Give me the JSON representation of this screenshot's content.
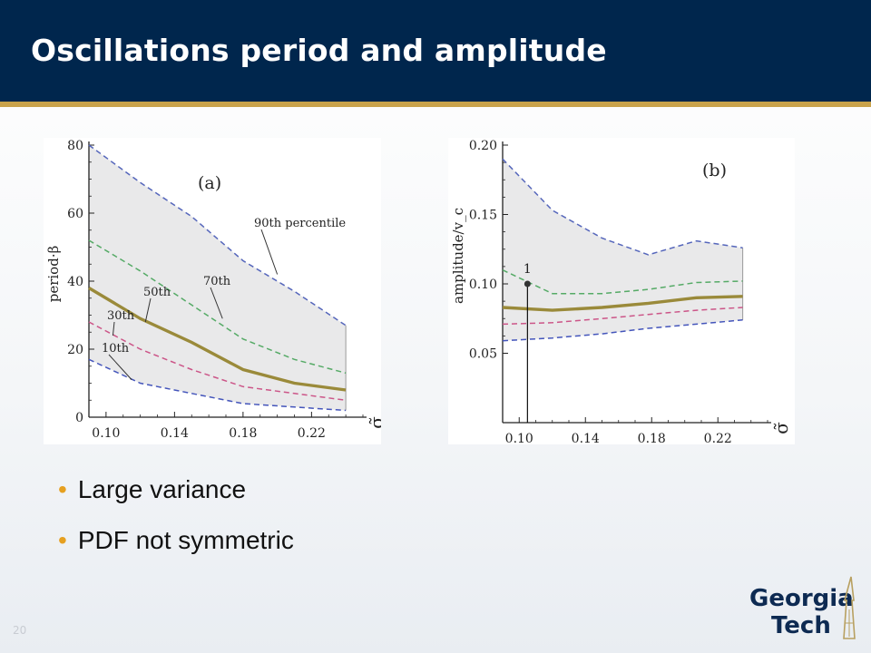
{
  "slide": {
    "title": "Oscillations period and amplitude",
    "slide_number": "20"
  },
  "bullets": [
    "Large variance",
    "PDF not symmetric"
  ],
  "logo": {
    "line1": "Georgia",
    "line2": "Tech"
  },
  "colors": {
    "header": "#00264d",
    "accent": "#c9a24b",
    "bullet": "#e6a020",
    "p90": "#5566bb",
    "p70": "#55aa66",
    "p50": "#9a8a3a",
    "p30": "#cc5588",
    "p10": "#4455bb"
  },
  "chart_data": [
    {
      "type": "line",
      "panel_label": "(a)",
      "xlabel": "σ̃",
      "ylabel": "period·β",
      "xlim": [
        0.09,
        0.25
      ],
      "ylim": [
        0,
        80
      ],
      "xticks": [
        0.1,
        0.14,
        0.18,
        0.22
      ],
      "xtick_labels": [
        "0.10",
        "0.14",
        "0.18",
        "0.22"
      ],
      "yticks": [
        0,
        20,
        40,
        60,
        80
      ],
      "ytick_labels": [
        "0",
        "20",
        "40",
        "60",
        "80"
      ],
      "shaded_band": {
        "lower_series": "10th",
        "upper_series": "90th"
      },
      "series": [
        {
          "name": "90th percentile",
          "label_text": "90th percentile",
          "style": "dashed",
          "color_key": "p90",
          "x": [
            0.09,
            0.12,
            0.15,
            0.18,
            0.21,
            0.24
          ],
          "y": [
            80,
            69,
            59,
            46,
            37,
            27
          ]
        },
        {
          "name": "70th",
          "label_text": "70th",
          "style": "dashed",
          "color_key": "p70",
          "x": [
            0.09,
            0.12,
            0.15,
            0.18,
            0.21,
            0.24
          ],
          "y": [
            52,
            43,
            33,
            23,
            17,
            13
          ]
        },
        {
          "name": "50th",
          "label_text": "50th",
          "style": "solid",
          "color_key": "p50",
          "x": [
            0.09,
            0.12,
            0.15,
            0.18,
            0.21,
            0.24
          ],
          "y": [
            38,
            29,
            22,
            14,
            10,
            8
          ]
        },
        {
          "name": "30th",
          "label_text": "30th",
          "style": "dashed",
          "color_key": "p30",
          "x": [
            0.09,
            0.12,
            0.15,
            0.18,
            0.21,
            0.24
          ],
          "y": [
            28,
            20,
            14,
            9,
            7,
            5
          ]
        },
        {
          "name": "10th",
          "label_text": "10th",
          "style": "dashed",
          "color_key": "p10",
          "x": [
            0.09,
            0.12,
            0.15,
            0.18,
            0.21,
            0.24
          ],
          "y": [
            17,
            10,
            7,
            4,
            3,
            2
          ]
        }
      ]
    },
    {
      "type": "line",
      "panel_label": "(b)",
      "xlabel": "σ̃",
      "ylabel": "amplitude/v_c",
      "xlim": [
        0.09,
        0.25
      ],
      "ylim": [
        0.0,
        0.2
      ],
      "xticks": [
        0.1,
        0.14,
        0.18,
        0.22
      ],
      "xtick_labels": [
        "0.10",
        "0.14",
        "0.18",
        "0.22"
      ],
      "yticks": [
        0.05,
        0.1,
        0.15,
        0.2
      ],
      "ytick_labels": [
        "0.05",
        "0.10",
        "0.15",
        "0.20"
      ],
      "shaded_band": {
        "lower_series": "10th",
        "upper_series": "90th"
      },
      "marker": {
        "label": "1",
        "x": 0.105,
        "y": 0.1
      },
      "series": [
        {
          "name": "90th",
          "style": "dashed",
          "color_key": "p90",
          "x": [
            0.09,
            0.12,
            0.15,
            0.178,
            0.207,
            0.235
          ],
          "y": [
            0.19,
            0.153,
            0.133,
            0.121,
            0.131,
            0.126
          ]
        },
        {
          "name": "70th",
          "style": "dashed",
          "color_key": "p70",
          "x": [
            0.09,
            0.12,
            0.15,
            0.178,
            0.207,
            0.235
          ],
          "y": [
            0.11,
            0.093,
            0.093,
            0.096,
            0.101,
            0.102
          ]
        },
        {
          "name": "50th",
          "style": "solid",
          "color_key": "p50",
          "x": [
            0.09,
            0.12,
            0.15,
            0.178,
            0.207,
            0.235
          ],
          "y": [
            0.083,
            0.081,
            0.083,
            0.086,
            0.09,
            0.091
          ]
        },
        {
          "name": "30th",
          "style": "dashed",
          "color_key": "p30",
          "x": [
            0.09,
            0.12,
            0.15,
            0.178,
            0.207,
            0.235
          ],
          "y": [
            0.071,
            0.072,
            0.075,
            0.078,
            0.081,
            0.083
          ]
        },
        {
          "name": "10th",
          "style": "dashed",
          "color_key": "p10",
          "x": [
            0.09,
            0.12,
            0.15,
            0.178,
            0.207,
            0.235
          ],
          "y": [
            0.059,
            0.061,
            0.064,
            0.068,
            0.071,
            0.074
          ]
        }
      ]
    }
  ]
}
